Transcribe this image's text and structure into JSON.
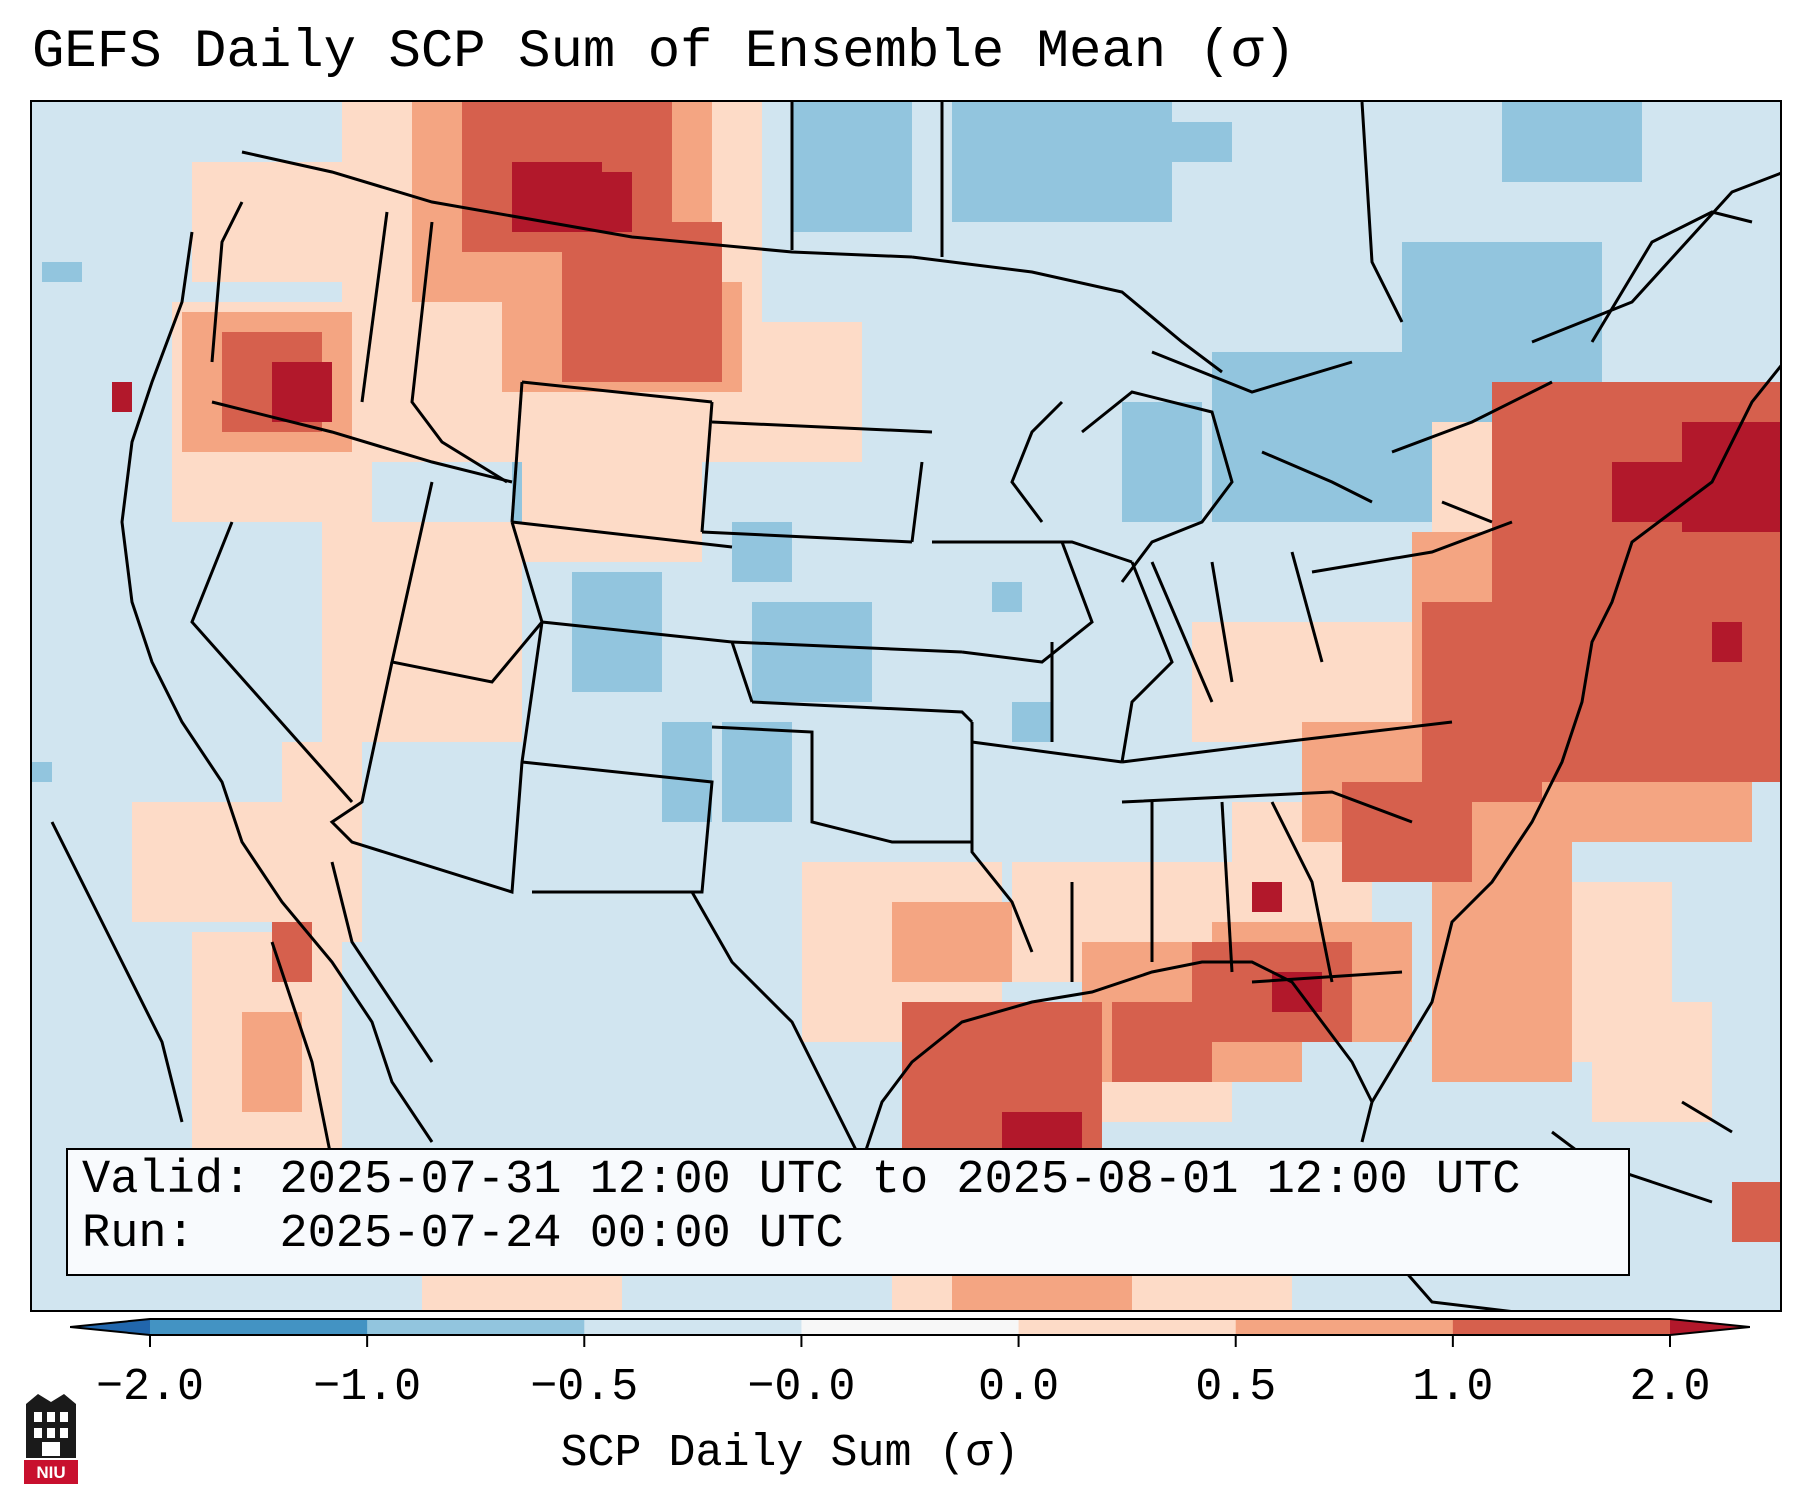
{
  "title": "GEFS Daily SCP Sum of Ensemble Mean (σ)",
  "info": {
    "valid_label": "Valid:",
    "valid_value": "2025-07-31 12:00 UTC to 2025-08-01 12:00 UTC",
    "run_label": "Run:",
    "run_value": "2025-07-24 00:00 UTC"
  },
  "colorbar": {
    "label": "SCP Daily Sum (σ)",
    "ticks": [
      "−2.0",
      "−1.0",
      "−0.5",
      "−0.0",
      "0.0",
      "0.5",
      "1.0",
      "2.0"
    ],
    "colors": [
      "#2166ac",
      "#4393c3",
      "#92c5de",
      "#d1e5f0",
      "#f7f7f7",
      "#fddbc7",
      "#f4a582",
      "#d6604d",
      "#b2182b"
    ]
  },
  "logo": {
    "text": "NIU"
  },
  "map": {
    "region": "Contiguous United States",
    "background_color": "#d1e5f0"
  }
}
